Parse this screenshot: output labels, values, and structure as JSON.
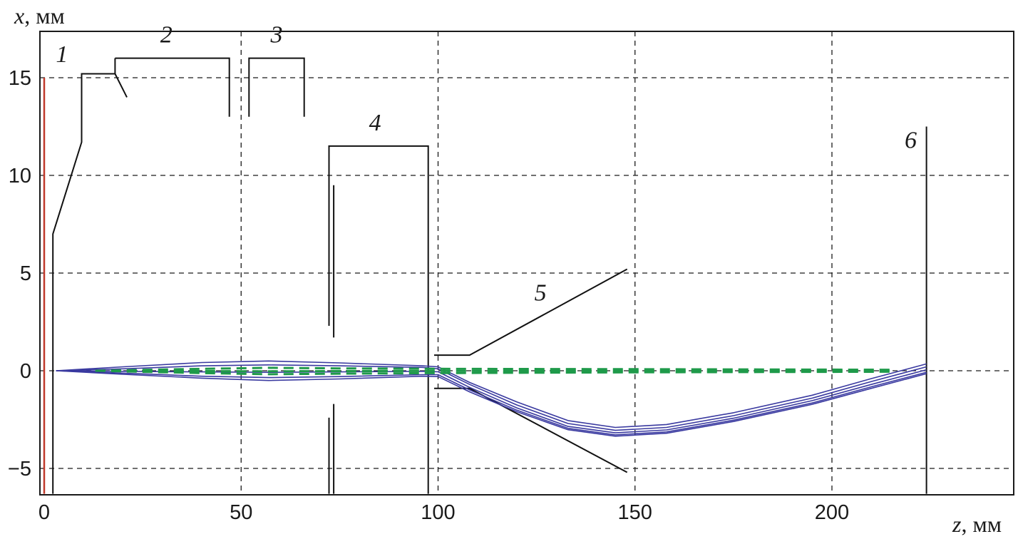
{
  "chart_data": {
    "type": "line",
    "title": "",
    "xlabel_var": "z",
    "xlabel_unit": ", мм",
    "ylabel_var": "x",
    "ylabel_unit": ", мм",
    "xlim": [
      0,
      225
    ],
    "ylim": [
      -6.3,
      17
    ],
    "grid": true,
    "xticks": [
      0,
      50,
      100,
      150,
      200
    ],
    "yticks": [
      15,
      10,
      5,
      0,
      -5
    ],
    "xtick_labels": [
      "0",
      "50",
      "100",
      "150",
      "200"
    ],
    "ytick_labels": [
      "15",
      "10",
      "5",
      "0",
      "−5"
    ],
    "annotations": [
      {
        "text": "1",
        "x": 4.5,
        "y": 15.8
      },
      {
        "text": "2",
        "x": 31,
        "y": 16.8
      },
      {
        "text": "3",
        "x": 59,
        "y": 16.8
      },
      {
        "text": "4",
        "x": 84,
        "y": 12.3
      },
      {
        "text": "5",
        "x": 126,
        "y": 3.6
      },
      {
        "text": "6",
        "x": 220,
        "y": 11.4
      }
    ],
    "electrode_color": "#111111",
    "electrodes": [
      {
        "name": "1",
        "points": [
          [
            2.2,
            -6.3
          ],
          [
            2.2,
            7
          ],
          [
            9.5,
            11.7
          ],
          [
            9.5,
            15.2
          ],
          [
            18,
            15.2
          ],
          [
            18,
            16
          ]
        ]
      },
      {
        "name": "1-lip",
        "points": [
          [
            18,
            15.2
          ],
          [
            21,
            14
          ]
        ]
      },
      {
        "name": "2",
        "points": [
          [
            18,
            16
          ],
          [
            47,
            16
          ],
          [
            47,
            13
          ]
        ]
      },
      {
        "name": "3",
        "points": [
          [
            52,
            13
          ],
          [
            52,
            16
          ],
          [
            66,
            16
          ],
          [
            66,
            13
          ]
        ]
      },
      {
        "name": "4-frame",
        "points": [
          [
            72.3,
            2.3
          ],
          [
            72.3,
            11.5
          ],
          [
            97.5,
            11.5
          ],
          [
            97.5,
            -6.3
          ]
        ]
      },
      {
        "name": "4-inner-upper",
        "points": [
          [
            73.5,
            1.7
          ],
          [
            73.5,
            9.5
          ]
        ]
      },
      {
        "name": "4-outer-lower",
        "points": [
          [
            72.3,
            -2.4
          ],
          [
            72.3,
            -6.3
          ]
        ]
      },
      {
        "name": "4-inner-lower",
        "points": [
          [
            73.5,
            -1.7
          ],
          [
            73.5,
            -6.3
          ]
        ]
      },
      {
        "name": "5-upper",
        "points": [
          [
            99,
            0.8
          ],
          [
            108,
            0.8
          ],
          [
            148,
            5.2
          ]
        ]
      },
      {
        "name": "5-lower",
        "points": [
          [
            99,
            -0.9
          ],
          [
            108,
            -0.9
          ],
          [
            148,
            -5.2
          ]
        ]
      },
      {
        "name": "6",
        "points": [
          [
            224,
            12.5
          ],
          [
            224,
            -6.3
          ]
        ]
      }
    ],
    "source_plane": {
      "name": "source",
      "color": "#c0392b",
      "x": 0,
      "y_range": [
        -6.3,
        15
      ]
    },
    "series": [
      {
        "color": "#3a3aa0",
        "points": [
          [
            3,
            0
          ],
          [
            20,
            0.2
          ],
          [
            40,
            0.42
          ],
          [
            57,
            0.5
          ],
          [
            75,
            0.4
          ],
          [
            96,
            0.25
          ],
          [
            100,
            0.2
          ],
          [
            108,
            -0.6
          ],
          [
            120,
            -1.6
          ],
          [
            133,
            -2.55
          ],
          [
            145,
            -2.9
          ],
          [
            158,
            -2.75
          ],
          [
            175,
            -2.15
          ],
          [
            195,
            -1.25
          ],
          [
            210,
            -0.4
          ],
          [
            224,
            0.35
          ]
        ]
      },
      {
        "color": "#3a3aa0",
        "points": [
          [
            3,
            0
          ],
          [
            20,
            0.1
          ],
          [
            40,
            0.25
          ],
          [
            57,
            0.3
          ],
          [
            75,
            0.25
          ],
          [
            96,
            0.17
          ],
          [
            100,
            0.1
          ],
          [
            108,
            -0.7
          ],
          [
            120,
            -1.75
          ],
          [
            133,
            -2.7
          ],
          [
            145,
            -3.05
          ],
          [
            158,
            -2.9
          ],
          [
            175,
            -2.3
          ],
          [
            195,
            -1.4
          ],
          [
            210,
            -0.55
          ],
          [
            224,
            0.2
          ]
        ]
      },
      {
        "color": "#3a3aa0",
        "points": [
          [
            3,
            0
          ],
          [
            20,
            -0.03
          ],
          [
            40,
            -0.06
          ],
          [
            57,
            -0.08
          ],
          [
            75,
            -0.06
          ],
          [
            96,
            -0.03
          ],
          [
            100,
            -0.05
          ],
          [
            108,
            -0.85
          ],
          [
            120,
            -1.9
          ],
          [
            133,
            -2.85
          ],
          [
            145,
            -3.18
          ],
          [
            158,
            -3.03
          ],
          [
            175,
            -2.43
          ],
          [
            195,
            -1.53
          ],
          [
            210,
            -0.7
          ],
          [
            224,
            0.05
          ]
        ]
      },
      {
        "color": "#3a3aa0",
        "points": [
          [
            3,
            0
          ],
          [
            20,
            -0.12
          ],
          [
            40,
            -0.28
          ],
          [
            57,
            -0.35
          ],
          [
            75,
            -0.3
          ],
          [
            96,
            -0.2
          ],
          [
            100,
            -0.2
          ],
          [
            108,
            -0.98
          ],
          [
            120,
            -2.02
          ],
          [
            133,
            -2.95
          ],
          [
            145,
            -3.28
          ],
          [
            158,
            -3.13
          ],
          [
            175,
            -2.53
          ],
          [
            195,
            -1.65
          ],
          [
            210,
            -0.82
          ],
          [
            224,
            -0.08
          ]
        ]
      },
      {
        "color": "#3a3aa0",
        "points": [
          [
            3,
            0
          ],
          [
            20,
            -0.18
          ],
          [
            40,
            -0.38
          ],
          [
            57,
            -0.5
          ],
          [
            75,
            -0.42
          ],
          [
            96,
            -0.28
          ],
          [
            100,
            -0.3
          ],
          [
            108,
            -1.08
          ],
          [
            120,
            -2.1
          ],
          [
            133,
            -3.02
          ],
          [
            145,
            -3.35
          ],
          [
            158,
            -3.2
          ],
          [
            175,
            -2.6
          ],
          [
            195,
            -1.72
          ],
          [
            210,
            -0.9
          ],
          [
            224,
            -0.15
          ]
        ]
      },
      {
        "color": "#1f9a4a",
        "dashed": true,
        "points": [
          [
            13,
            0
          ],
          [
            40,
            0.1
          ],
          [
            57,
            0.15
          ],
          [
            75,
            0.12
          ],
          [
            100,
            0.1
          ],
          [
            150,
            0.08
          ],
          [
            215,
            0.05
          ]
        ]
      },
      {
        "color": "#1f9a4a",
        "dashed": true,
        "points": [
          [
            13,
            0
          ],
          [
            40,
            -0.02
          ],
          [
            57,
            -0.03
          ],
          [
            75,
            -0.02
          ],
          [
            100,
            -0.01
          ],
          [
            150,
            -0.01
          ],
          [
            215,
            0
          ]
        ]
      },
      {
        "color": "#1f9a4a",
        "dashed": true,
        "points": [
          [
            13,
            0
          ],
          [
            40,
            -0.12
          ],
          [
            57,
            -0.18
          ],
          [
            75,
            -0.15
          ],
          [
            100,
            -0.12
          ],
          [
            150,
            -0.08
          ],
          [
            215,
            -0.05
          ]
        ]
      }
    ]
  }
}
